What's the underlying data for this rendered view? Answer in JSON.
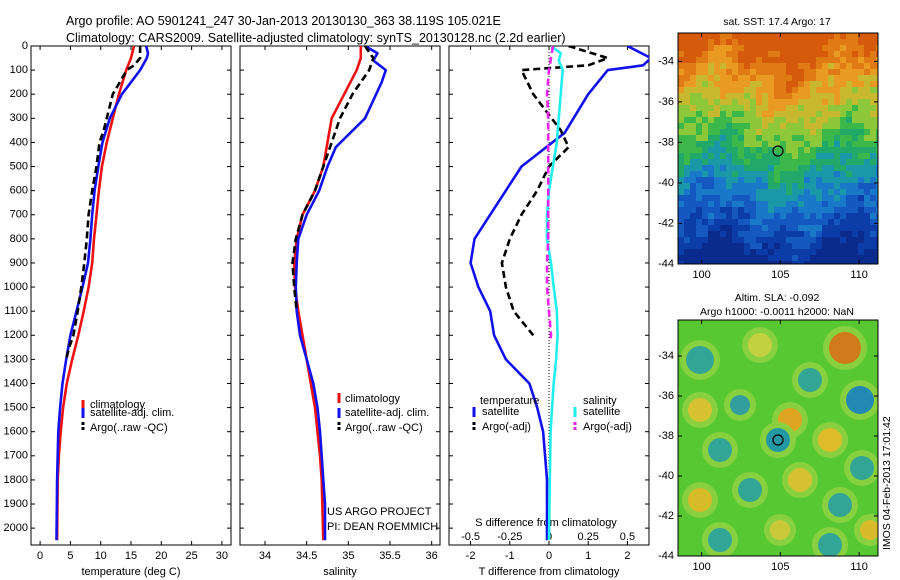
{
  "header": {
    "title_line1": "Argo profile: AO 5901241_247 30-Jan-2013 20130130_363 38.119S 105.021E",
    "title_line2": "Climatology: CARS2009. Satellite-adjusted climatology: synTS_20130128.nc (2.2d earlier)"
  },
  "colors": {
    "climatology": "#ee1111",
    "satellite": "#1111ee",
    "argo": "#000000",
    "salinity_satellite": "#22eeee",
    "salinity_argo": "#ee22ee"
  },
  "legend": {
    "climatology": "climatology",
    "satellite_adj": "satellite-adj. clim.",
    "argo_raw": "Argo(..raw -QC)",
    "temperature_heading": "temperature",
    "salinity_heading": "salinity",
    "satellite": "satellite",
    "argo_adj": "Argo(-adj)"
  },
  "annotations": {
    "project": "US ARGO PROJECT",
    "pi": "PI: DEAN ROEMMICH",
    "s_diff_label": "S difference from climatology",
    "t_diff_label": "T difference from climatology",
    "imos_stamp": "IMOS 04-Feb-2013 17:01:42"
  },
  "maps": {
    "sst_title": "sat. SST: 17.4  Argo: 17",
    "sla_title_line1": "Altim. SLA: -0.092",
    "sla_title_line2": "Argo h1000: -0.0011  h2000: NaN",
    "lat_ticks": [
      "-34",
      "-36",
      "-38",
      "-40",
      "-42",
      "-44"
    ],
    "lon_ticks": [
      "100",
      "105",
      "110"
    ],
    "marker": {
      "lon": 105.021,
      "lat": -38.119
    }
  },
  "chart_data": [
    {
      "type": "line",
      "xlabel": "temperature (deg C)",
      "ylabel": "",
      "xlim": [
        -1.5,
        31.5
      ],
      "ylim": [
        2070,
        0
      ],
      "xticks": [
        "0",
        "5",
        "10",
        "15",
        "20",
        "25",
        "30"
      ],
      "yticks": [
        "0",
        "100",
        "200",
        "300",
        "400",
        "500",
        "600",
        "700",
        "800",
        "900",
        "1000",
        "1100",
        "1200",
        "1300",
        "1400",
        "1500",
        "1600",
        "1700",
        "1800",
        "1900",
        "2000"
      ],
      "series": [
        {
          "name": "climatology",
          "color": "#ee1111",
          "dash": false,
          "x": [
            15.5,
            15.0,
            14.2,
            13.0,
            12.0,
            11.0,
            10.2,
            9.7,
            9.3,
            8.9,
            8.6,
            8.0,
            7.2,
            6.3,
            5.3,
            4.4,
            3.8,
            3.4,
            3.1,
            2.9,
            2.8
          ],
          "y": [
            0,
            50,
            100,
            200,
            300,
            400,
            500,
            600,
            700,
            800,
            900,
            1000,
            1100,
            1200,
            1300,
            1400,
            1500,
            1600,
            1700,
            1800,
            2050
          ]
        },
        {
          "name": "satellite-adj. clim.",
          "color": "#1111ee",
          "dash": false,
          "x": [
            17.5,
            17.8,
            17.6,
            16.5,
            15.0,
            13.5,
            11.5,
            10.3,
            9.6,
            9.0,
            8.6,
            8.3,
            7.9,
            7.0,
            6.0,
            5.0,
            4.3,
            3.7,
            3.3,
            3.0,
            2.8,
            2.7
          ],
          "y": [
            0,
            30,
            50,
            100,
            150,
            200,
            300,
            400,
            500,
            600,
            700,
            800,
            900,
            1000,
            1100,
            1200,
            1300,
            1400,
            1500,
            1600,
            1800,
            2050
          ]
        },
        {
          "name": "Argo(..raw -QC)",
          "color": "#000000",
          "dash": true,
          "x": [
            16.5,
            16.5,
            15.5,
            14.3,
            12.0,
            10.5,
            9.8,
            9.3,
            8.6,
            8.0,
            7.7,
            7.3,
            6.8,
            6.2,
            5.5,
            4.8,
            4.3
          ],
          "y": [
            0,
            50,
            80,
            100,
            200,
            350,
            400,
            500,
            600,
            700,
            800,
            900,
            1000,
            1100,
            1200,
            1250,
            1300
          ]
        }
      ]
    },
    {
      "type": "line",
      "xlabel": "salinity",
      "ylabel": "",
      "xlim": [
        33.7,
        36.1
      ],
      "ylim": [
        2070,
        0
      ],
      "xticks": [
        "34",
        "34.5",
        "35",
        "35.5",
        "36"
      ],
      "series": [
        {
          "name": "climatology",
          "color": "#ee1111",
          "dash": false,
          "x": [
            35.15,
            35.15,
            35.1,
            34.95,
            34.8,
            34.75,
            34.7,
            34.6,
            34.45,
            34.38,
            34.35,
            34.36,
            34.4,
            34.45,
            34.5,
            34.55,
            34.6,
            34.63,
            34.66,
            34.68,
            34.7
          ],
          "y": [
            0,
            50,
            100,
            200,
            300,
            400,
            500,
            600,
            700,
            800,
            900,
            1000,
            1100,
            1200,
            1300,
            1400,
            1500,
            1600,
            1700,
            1800,
            2050
          ]
        },
        {
          "name": "satellite-adj. clim.",
          "color": "#1111ee",
          "dash": false,
          "x": [
            35.2,
            35.35,
            35.3,
            35.45,
            35.4,
            35.2,
            34.85,
            34.75,
            34.65,
            34.5,
            34.4,
            34.38,
            34.37,
            34.38,
            34.42,
            34.5,
            34.58,
            34.63,
            34.66,
            34.68,
            34.7,
            34.72,
            34.72
          ],
          "y": [
            0,
            30,
            60,
            100,
            150,
            300,
            420,
            500,
            600,
            700,
            800,
            900,
            1000,
            1100,
            1200,
            1300,
            1400,
            1500,
            1600,
            1700,
            1800,
            1900,
            2050
          ]
        },
        {
          "name": "Argo(..raw -QC)",
          "color": "#000000",
          "dash": true,
          "x": [
            35.2,
            35.3,
            35.25,
            35.05,
            34.9,
            34.8,
            34.7,
            34.6,
            34.45,
            34.37,
            34.33,
            34.35,
            34.38
          ],
          "y": [
            0,
            50,
            100,
            200,
            300,
            400,
            500,
            600,
            700,
            800,
            900,
            1000,
            1100
          ]
        }
      ]
    },
    {
      "type": "line",
      "xlabel": "T difference from climatology",
      "ylabel": "",
      "xlim": [
        -2.55,
        2.55
      ],
      "ylim": [
        2070,
        0
      ],
      "xticks": [
        "-2",
        "-1",
        "0",
        "1",
        "2"
      ],
      "x2label": "S difference from climatology",
      "x2ticks": [
        "-0.5",
        "-0.25",
        "0",
        "0.25",
        "0.5"
      ],
      "series": [
        {
          "name": "temperature satellite",
          "color": "#1111ee",
          "dash": false,
          "x": [
            2.0,
            2.6,
            2.4,
            1.5,
            1.0,
            0.4,
            -0.7,
            -1.5,
            -1.9,
            -2.0,
            -1.8,
            -1.5,
            -1.4,
            -1.1,
            -0.5,
            -0.3,
            -0.15,
            -0.1,
            -0.05,
            -0.05
          ],
          "y": [
            0,
            50,
            80,
            100,
            200,
            360,
            500,
            700,
            800,
            900,
            1000,
            1100,
            1200,
            1300,
            1400,
            1500,
            1600,
            1700,
            1800,
            2050
          ]
        },
        {
          "name": "temperature Argo(-adj)",
          "color": "#000000",
          "dash": true,
          "x": [
            0.5,
            1.5,
            1.0,
            -0.7,
            -0.4,
            0.3,
            0.5,
            0.0,
            -0.3,
            -0.7,
            -1.0,
            -1.2,
            -1.1,
            -0.9,
            -0.4
          ],
          "y": [
            0,
            50,
            80,
            100,
            200,
            350,
            420,
            500,
            600,
            700,
            800,
            900,
            1000,
            1100,
            1200
          ]
        },
        {
          "name": "salinity satellite",
          "color": "#22eeee",
          "dash": false,
          "x": [
            0.05,
            0.3,
            0.25,
            0.35,
            0.2,
            0.1,
            0.0,
            -0.05,
            -0.05,
            0.05,
            0.12,
            0.2,
            0.22,
            0.18,
            0.12,
            0.08,
            0.04,
            0.02,
            0.0
          ],
          "y": [
            0,
            30,
            60,
            100,
            400,
            500,
            600,
            700,
            800,
            900,
            1000,
            1100,
            1200,
            1300,
            1400,
            1500,
            1600,
            1800,
            2050
          ]
        },
        {
          "name": "salinity Argo(-adj)",
          "color": "#ee22ee",
          "dash": true,
          "x": [
            0.1,
            0.05,
            0.0,
            -0.05,
            -0.02,
            -0.02,
            -0.02,
            -0.05,
            -0.05,
            0.0,
            0.05,
            0.02
          ],
          "y": [
            0,
            50,
            100,
            200,
            300,
            700,
            800,
            900,
            1000,
            1100,
            1200,
            1230
          ]
        }
      ]
    }
  ]
}
